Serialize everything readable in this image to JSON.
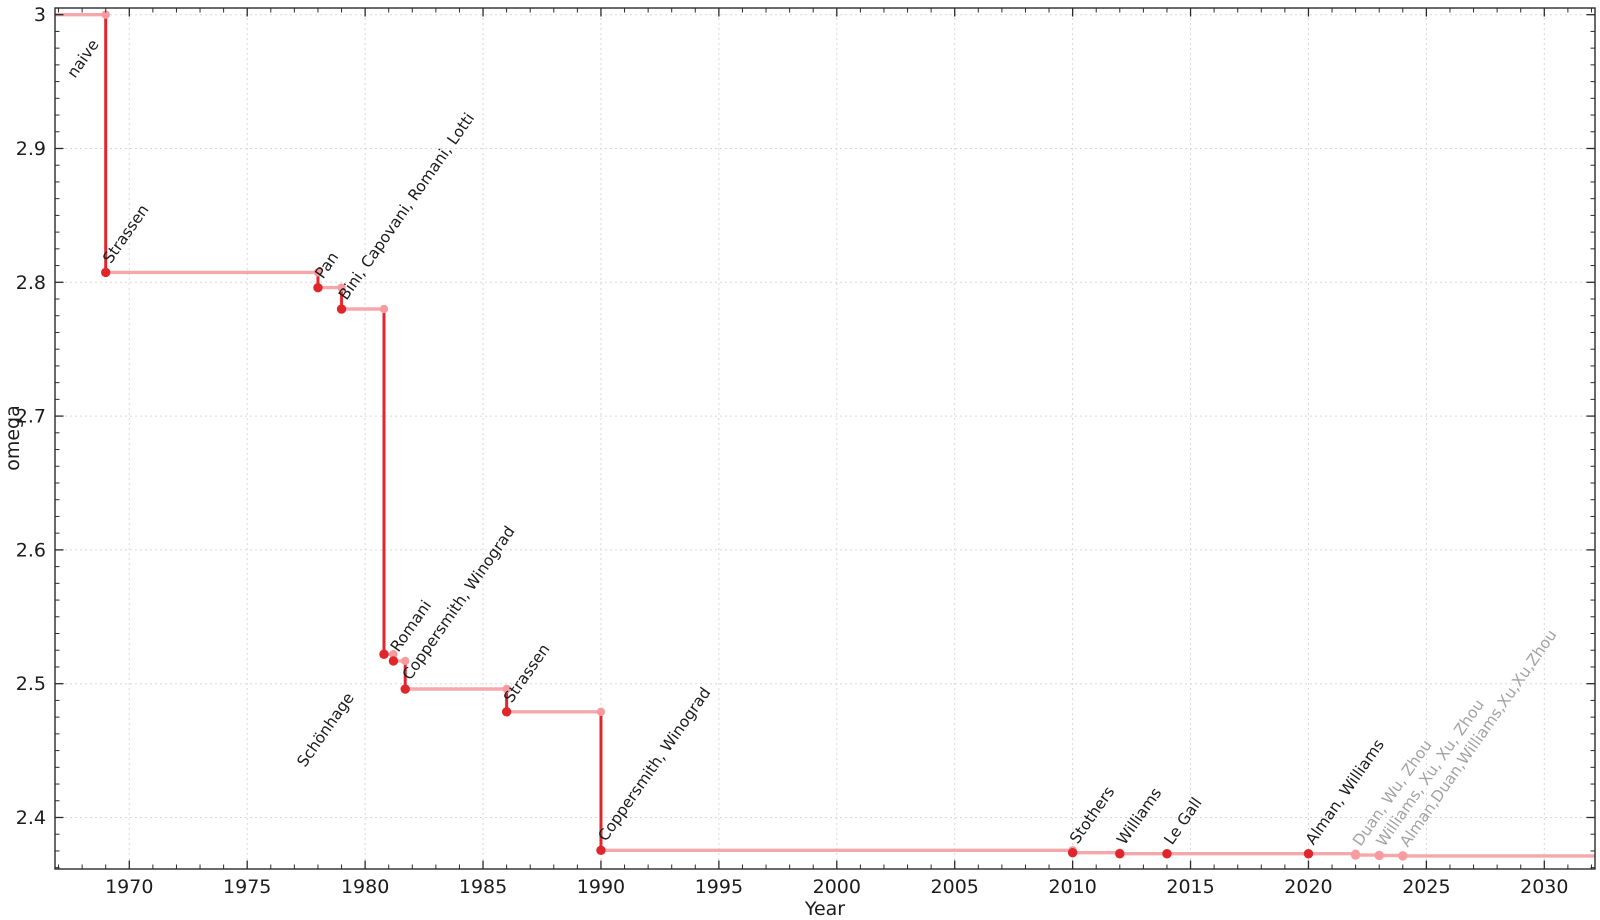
{
  "chart_data": {
    "type": "line",
    "variant": "step-post",
    "title": "",
    "xlabel": "Year",
    "ylabel": "omega",
    "xlim": [
      1966.85,
      2032.15
    ],
    "ylim": [
      2.3615,
      3.005
    ],
    "x_ticks": [
      1970,
      1975,
      1980,
      1985,
      1990,
      1995,
      2000,
      2005,
      2010,
      2015,
      2020,
      2025,
      2030
    ],
    "x_tick_labels": [
      "1970",
      "1975",
      "1980",
      "1985",
      "1990",
      "1995",
      "2000",
      "2005",
      "2010",
      "2015",
      "2020",
      "2025",
      "2030"
    ],
    "y_ticks": [
      2.4,
      2.5,
      2.6,
      2.7,
      2.8,
      2.9,
      3.0
    ],
    "y_tick_labels": [
      "2.4",
      "2.5",
      "2.6",
      "2.7",
      "2.8",
      "2.9",
      "3"
    ],
    "x_minor_step": 1,
    "y_minor_step": 0.0125,
    "grid": "dotted-at-major-ticks",
    "legend_position": "none",
    "series_start_omega": 3.0,
    "events": [
      {
        "label": "naive",
        "year": null,
        "omega": 3.0,
        "muted": false,
        "label_anchor": [
          1967.7,
          2.952
        ]
      },
      {
        "label": "Strassen",
        "year": 1969,
        "omega": 2.8074,
        "muted": false
      },
      {
        "label": "Pan",
        "year": 1978,
        "omega": 2.796,
        "muted": false
      },
      {
        "label": "Bini, Capovani, Romani, Lotti",
        "year": 1979,
        "omega": 2.78,
        "muted": false
      },
      {
        "label": "Schönhage",
        "year": 1980.8,
        "omega": 2.522,
        "muted": false,
        "label_anchor": [
          1977.45,
          2.437
        ]
      },
      {
        "label": "Romani",
        "year": 1981.2,
        "omega": 2.517,
        "muted": false
      },
      {
        "label": "Coppersmith, Winograd",
        "year": 1981.7,
        "omega": 2.496,
        "muted": false
      },
      {
        "label": "Strassen",
        "year": 1986,
        "omega": 2.479,
        "muted": false
      },
      {
        "label": "Coppersmith, Winograd",
        "year": 1990,
        "omega": 2.3755,
        "muted": false
      },
      {
        "label": "Stothers",
        "year": 2010,
        "omega": 2.3737,
        "muted": false
      },
      {
        "label": "Williams",
        "year": 2012,
        "omega": 2.3729,
        "muted": false
      },
      {
        "label": "Le Gall",
        "year": 2014,
        "omega": 2.3729,
        "muted": false
      },
      {
        "label": "Alman, Williams",
        "year": 2020,
        "omega": 2.3729,
        "muted": false
      },
      {
        "label": "Duan, Wu, Zhou",
        "year": 2022,
        "omega": 2.3719,
        "muted": true
      },
      {
        "label": "Williams, Xu, Xu, Zhou",
        "year": 2023,
        "omega": 2.3716,
        "muted": true
      },
      {
        "label": "Alman,Duan,Williams,Xu,Xu,Zhou",
        "year": 2024,
        "omega": 2.3713,
        "muted": true
      }
    ],
    "colors": {
      "line_strong": "#e0252b",
      "line_pale": "#f5a8ab",
      "marker_new": "#e0252b",
      "marker_old": "#f79ba0",
      "label_default": "#1c1c1c",
      "label_muted": "#a3a3a3",
      "tick_text": "#1c1c1c",
      "frame": "#2a2a2e",
      "grid": "#d8d8d8",
      "background": "#ffffff"
    }
  }
}
